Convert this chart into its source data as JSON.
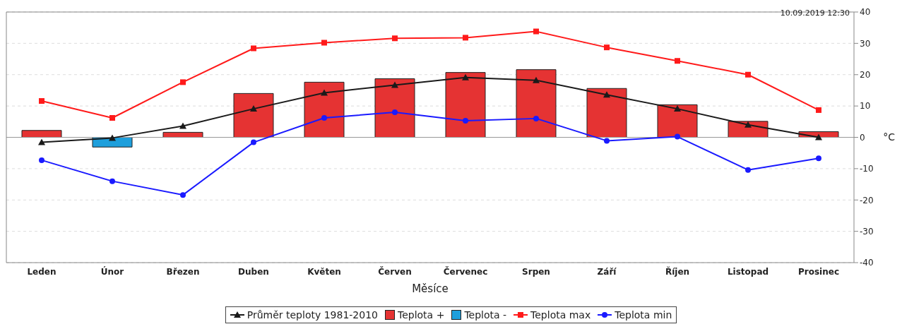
{
  "chart_data": {
    "type": "bar",
    "xlabel": "Měsíce",
    "ylabel": "°C",
    "categories": [
      "Leden",
      "Únor",
      "Březen",
      "Duben",
      "Květen",
      "Červen",
      "Červenec",
      "Srpen",
      "Září",
      "Říjen",
      "Listopad",
      "Prosinec"
    ],
    "series": [
      {
        "name": "Teplota +",
        "color": "#e53333",
        "values": [
          2.2,
          null,
          1.6,
          14.0,
          17.6,
          18.7,
          20.7,
          21.6,
          15.6,
          10.4,
          5.1,
          1.8
        ]
      },
      {
        "name": "Teplota -",
        "color": "#1e9fdc",
        "values": [
          null,
          -3.1,
          null,
          null,
          null,
          null,
          null,
          null,
          null,
          null,
          null,
          null
        ]
      },
      {
        "name": "Teplota max",
        "type": "line",
        "color": "#ff1a1a",
        "marker": "square",
        "values": [
          11.6,
          6.2,
          17.6,
          28.4,
          30.2,
          31.6,
          31.8,
          33.8,
          28.7,
          24.4,
          20.0,
          8.7
        ]
      },
      {
        "name": "Teplota min",
        "type": "line",
        "color": "#1a1aff",
        "marker": "circle",
        "values": [
          -7.3,
          -14.0,
          -18.4,
          -1.6,
          6.2,
          8.0,
          5.3,
          6.0,
          -1.1,
          0.2,
          -10.4,
          -6.7
        ]
      },
      {
        "name": "Průměr teploty 1981-2010",
        "type": "line",
        "color": "#1a1a1a",
        "marker": "triangle",
        "values": [
          -1.6,
          -0.2,
          3.6,
          9.1,
          14.2,
          16.7,
          19.1,
          18.2,
          13.6,
          9.1,
          4.0,
          0.0
        ]
      }
    ],
    "stacked": true,
    "ylim": [
      -40,
      40
    ],
    "yticks": [
      -40,
      -30,
      -20,
      -10,
      0,
      10,
      20,
      30,
      40
    ],
    "grid": "y",
    "legend": "bottom",
    "ref_lines": [
      {
        "axis": "y",
        "value": 0,
        "color": "#999999"
      }
    ],
    "annotations": [
      "10.09.2019 12:30"
    ]
  }
}
